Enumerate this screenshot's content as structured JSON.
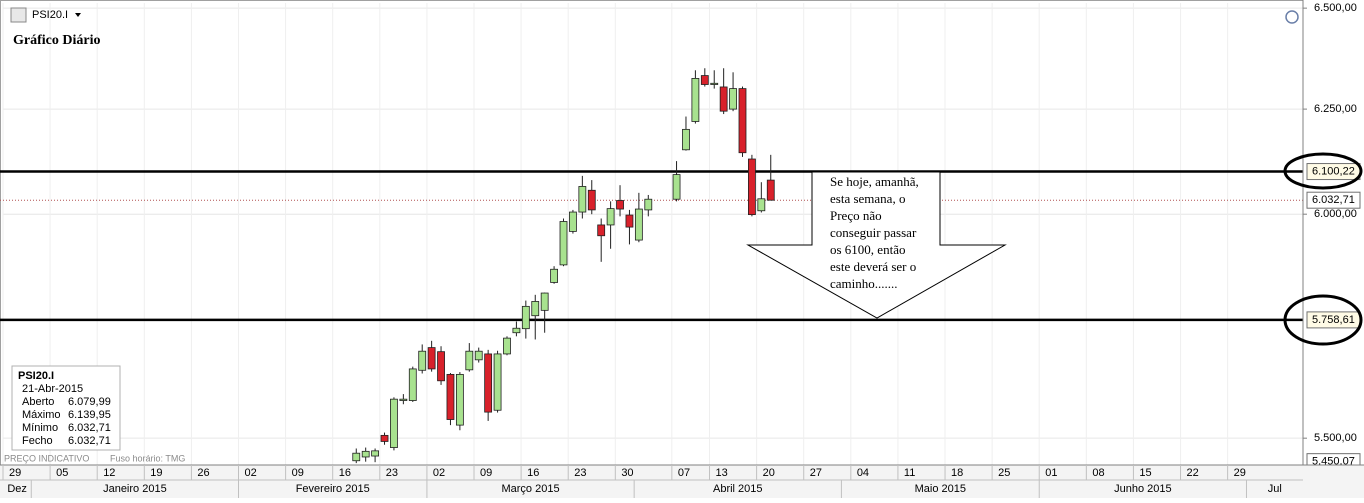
{
  "chart_data": {
    "type": "candlestick",
    "title": "Gráfico Diário",
    "symbol": "PSI20.I",
    "footnotes": [
      "PREÇO INDICATIVO",
      "Fuso horário: TMG"
    ],
    "x": [
      "2015-02-18",
      "2015-02-19",
      "2015-02-20",
      "2015-02-23",
      "2015-02-24",
      "2015-02-25",
      "2015-02-26",
      "2015-02-27",
      "2015-03-02",
      "2015-03-03",
      "2015-03-04",
      "2015-03-05",
      "2015-03-06",
      "2015-03-09",
      "2015-03-10",
      "2015-03-11",
      "2015-03-12",
      "2015-03-13",
      "2015-03-16",
      "2015-03-17",
      "2015-03-18",
      "2015-03-19",
      "2015-03-20",
      "2015-03-23",
      "2015-03-24",
      "2015-03-25",
      "2015-03-26",
      "2015-03-27",
      "2015-03-30",
      "2015-03-31",
      "2015-04-01",
      "2015-04-02",
      "2015-04-07",
      "2015-04-08",
      "2015-04-09",
      "2015-04-10",
      "2015-04-13",
      "2015-04-14",
      "2015-04-15",
      "2015-04-16",
      "2015-04-17",
      "2015-04-20",
      "2015-04-21"
    ],
    "open": [
      5452,
      5460,
      5462,
      5506,
      5480,
      5581,
      5581,
      5647,
      5697,
      5688,
      5638,
      5528,
      5648,
      5670,
      5683,
      5560,
      5683,
      5730,
      5739,
      5768,
      5780,
      5843,
      5883,
      5960,
      6005,
      6056,
      5975,
      5975,
      6032,
      5998,
      5940,
      6010,
      6035,
      6152,
      6220,
      6332,
      6310,
      6304,
      6250,
      6300,
      6130,
      6008,
      6079.99
    ],
    "high": [
      5478,
      5480,
      5478,
      5512,
      5588,
      5595,
      5655,
      5704,
      5712,
      5700,
      5641,
      5643,
      5707,
      5697,
      5692,
      5690,
      5722,
      5755,
      5802,
      5815,
      5820,
      5880,
      5990,
      6010,
      6090,
      6080,
      5990,
      6030,
      6068,
      6010,
      6050,
      6045,
      6125,
      6232,
      6345,
      6350,
      6345,
      6350,
      6340,
      6305,
      6140,
      6075,
      6139.95
    ],
    "low": [
      5447,
      5450,
      5449,
      5486,
      5474,
      5573,
      5578,
      5640,
      5644,
      5615,
      5528,
      5517,
      5644,
      5664,
      5537,
      5555,
      5680,
      5722,
      5717,
      5715,
      5730,
      5840,
      5880,
      5955,
      5990,
      6000,
      5890,
      5920,
      5995,
      5930,
      5935,
      5995,
      6030,
      6150,
      6215,
      6305,
      6300,
      6238,
      6245,
      6135,
      5995,
      6004,
      6032.71
    ],
    "close": [
      5468,
      5472,
      5473,
      5493,
      5584,
      5584,
      5650,
      5689,
      5650,
      5624,
      5540,
      5638,
      5689,
      5689,
      5556,
      5683,
      5718,
      5740,
      5789,
      5800,
      5819,
      5873,
      5983,
      6005,
      6065,
      6010,
      5950,
      6013,
      6012,
      5970,
      6012,
      6035,
      6093,
      6201,
      6325,
      6310,
      6313,
      6245,
      6300,
      6145,
      5999,
      6036,
      6032.71
    ],
    "up_color": "#a8e28f",
    "down_color": "#d8212b",
    "xlim": [
      "2014-12-29",
      "2015-07-08"
    ],
    "xticks": [
      {
        "value": "2014-12-29",
        "label": "29"
      },
      {
        "value": "2015-01-05",
        "label": "05"
      },
      {
        "value": "2015-01-12",
        "label": "12"
      },
      {
        "value": "2015-01-19",
        "label": "19"
      },
      {
        "value": "2015-01-26",
        "label": "26"
      },
      {
        "value": "2015-02-02",
        "label": "02"
      },
      {
        "value": "2015-02-09",
        "label": "09"
      },
      {
        "value": "2015-02-16",
        "label": "16"
      },
      {
        "value": "2015-02-23",
        "label": "23"
      },
      {
        "value": "2015-03-02",
        "label": "02"
      },
      {
        "value": "2015-03-09",
        "label": "09"
      },
      {
        "value": "2015-03-16",
        "label": "16"
      },
      {
        "value": "2015-03-23",
        "label": "23"
      },
      {
        "value": "2015-03-30",
        "label": "30"
      },
      {
        "value": "2015-04-07",
        "label": "07"
      },
      {
        "value": "2015-04-13",
        "label": "13"
      },
      {
        "value": "2015-04-20",
        "label": "20"
      },
      {
        "value": "2015-04-27",
        "label": "27"
      },
      {
        "value": "2015-05-04",
        "label": "04"
      },
      {
        "value": "2015-05-11",
        "label": "11"
      },
      {
        "value": "2015-05-18",
        "label": "18"
      },
      {
        "value": "2015-05-25",
        "label": "25"
      },
      {
        "value": "2015-06-01",
        "label": "01"
      },
      {
        "value": "2015-06-08",
        "label": "08"
      },
      {
        "value": "2015-06-15",
        "label": "15"
      },
      {
        "value": "2015-06-22",
        "label": "22"
      },
      {
        "value": "2015-06-29",
        "label": "29"
      }
    ],
    "months": [
      "Dez",
      "Janeiro 2015",
      "Fevereiro 2015",
      "Março 2015",
      "Abril 2015",
      "Maio 2015",
      "Junho 2015",
      "Jul"
    ],
    "ylim": [
      5443,
      6513
    ],
    "log_y": true,
    "yticks": [
      {
        "value": 5500,
        "label": "5.500,00"
      },
      {
        "value": 6000,
        "label": "6.000,00"
      },
      {
        "value": 6250,
        "label": "6.250,00"
      },
      {
        "value": 6500,
        "label": "6.500,00"
      }
    ],
    "grid": true,
    "price_markers": [
      {
        "value": 6100.22,
        "label": "6.100,22",
        "line": "solid",
        "circled": true
      },
      {
        "value": 6032.71,
        "label": "6.032,71",
        "line": "dotted",
        "circled": false
      },
      {
        "value": 5758.61,
        "label": "5.758,61",
        "line": "solid",
        "circled": true
      },
      {
        "value": 5450.07,
        "label": "5.450,07",
        "line": "none",
        "circled": false
      }
    ],
    "annotation": [
      "Se hoje, amanhã,",
      "esta semana, o",
      "Preço não",
      "conseguir passar",
      "os 6100, então",
      "este deverá ser o",
      "caminho......."
    ],
    "info_box": {
      "symbol": "PSI20.I",
      "date": "21-Abr-2015",
      "rows": [
        [
          "Aberto",
          "6.079,99"
        ],
        [
          "Máximo",
          "6.139,95"
        ],
        [
          "Mínimo",
          "6.032,71"
        ],
        [
          "Fecho",
          "6.032,71"
        ]
      ]
    }
  }
}
